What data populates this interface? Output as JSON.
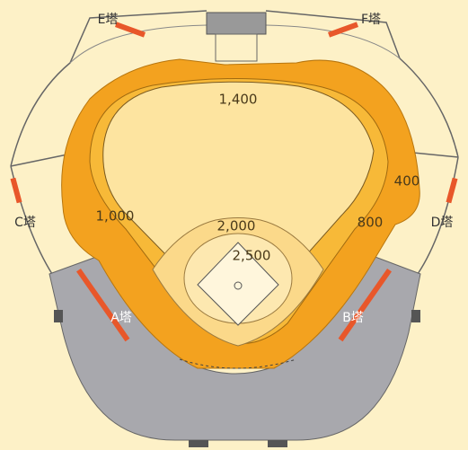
{
  "towers": [
    "E塔",
    "F塔",
    "C塔",
    "D塔",
    "A塔",
    "B塔"
  ],
  "contours": [
    "1,400",
    "1,000",
    "2,000",
    "2,500",
    "800",
    "400"
  ]
}
